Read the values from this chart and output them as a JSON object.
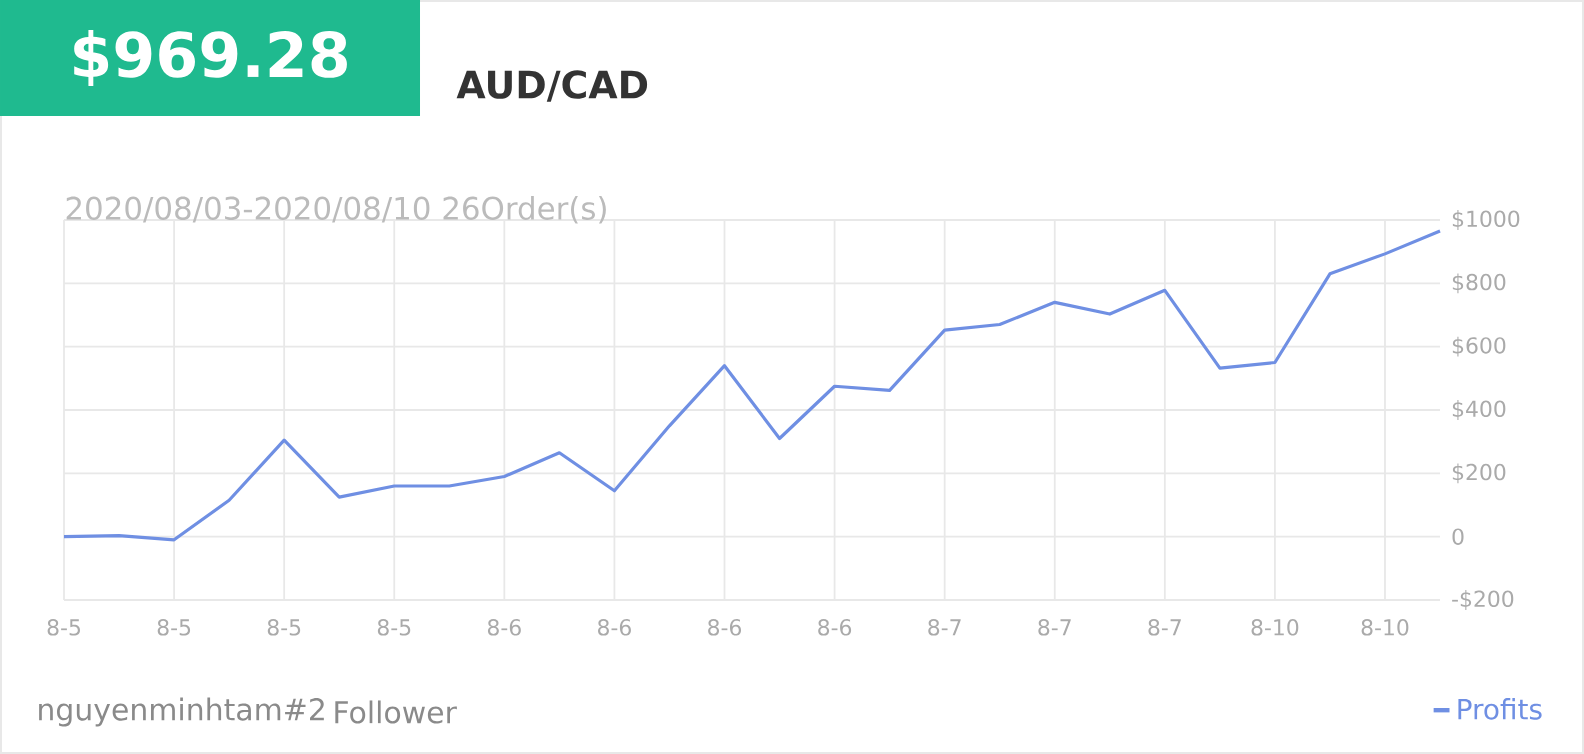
{
  "chart_data": {
    "type": "line",
    "title": "$969.28",
    "subtitle": "AUD/CAD",
    "annotations": [
      "2020/08/03-2020/08/10 26Order(s)",
      "nguyenminhtam#2",
      "Follower"
    ],
    "categories": [
      "8-5",
      null,
      "8-5",
      null,
      "8-5",
      null,
      "8-5",
      null,
      "8-6",
      null,
      "8-6",
      null,
      "8-6",
      null,
      "8-6",
      null,
      "8-7",
      null,
      "8-7",
      null,
      "8-7",
      null,
      "8-10",
      null,
      "8-10",
      null
    ],
    "series": [
      {
        "name": "Profits",
        "color": "#6f8fe3",
        "values": [
          0,
          3,
          -10,
          115,
          305,
          125,
          160,
          160,
          190,
          265,
          145,
          350,
          540,
          310,
          475,
          462,
          652,
          670,
          740,
          703,
          778,
          532,
          550,
          830,
          893,
          965
        ]
      }
    ],
    "ylim": [
      -200,
      1000
    ],
    "yticks": [
      {
        "value": -200,
        "label": "-$200"
      },
      0,
      {
        "value": 200,
        "label": "$200"
      },
      {
        "value": 400,
        "label": "$400"
      },
      {
        "value": 600,
        "label": "$600"
      },
      {
        "value": 800,
        "label": "$800"
      },
      {
        "value": 1000,
        "label": "$1000"
      }
    ],
    "grid": true,
    "legend": "bottom right",
    "marker": "none",
    "line_style": "solid"
  }
}
